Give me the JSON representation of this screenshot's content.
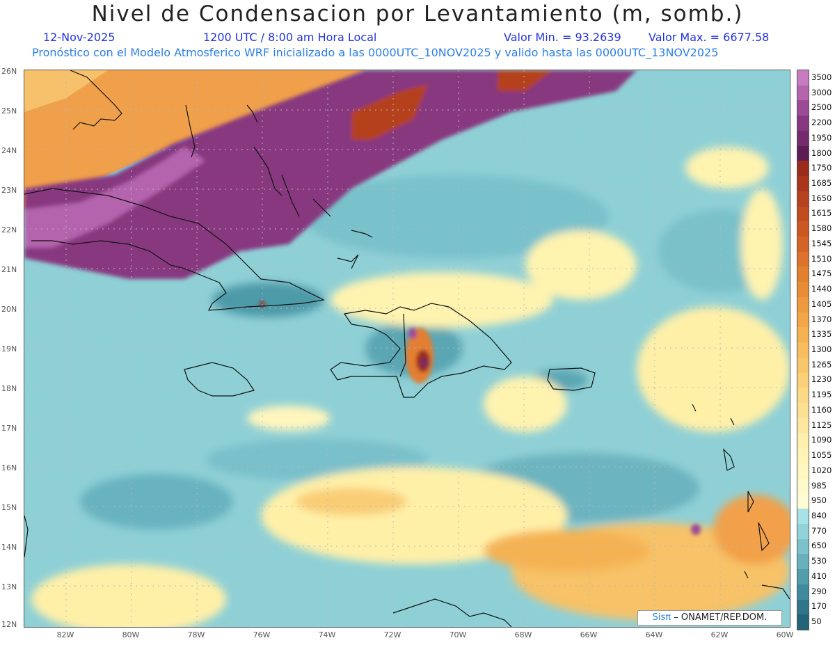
{
  "header": {
    "title": "Nivel de Condensacion por Levantamiento (m, somb.)",
    "date": "12-Nov-2025",
    "time": "1200 UTC / 8:00 am Hora Local",
    "min_label": "Valor Min. = 93.2639",
    "max_label": "Valor Max. = 6677.58",
    "model_info": "Pronóstico con el Modelo Atmosferico WRF inicializado a las 0000UTC_10NOV2025 y valido hasta las  0000UTC_13NOV2025"
  },
  "map": {
    "lat_labels": [
      "26N",
      "25N",
      "24N",
      "23N",
      "22N",
      "21N",
      "20N",
      "19N",
      "18N",
      "17N",
      "16N",
      "15N",
      "14N",
      "13N",
      "12N"
    ],
    "lon_labels": [
      "82W",
      "80W",
      "78W",
      "76W",
      "74W",
      "72W",
      "70W",
      "68W",
      "66W",
      "64W",
      "62W",
      "60W"
    ],
    "lat_range": [
      12,
      26
    ],
    "lon_range": [
      -83.2,
      -59.8
    ]
  },
  "legend": {
    "labels": [
      "3500",
      "3000",
      "2500",
      "2200",
      "1950",
      "1800",
      "1750",
      "1685",
      "1650",
      "1615",
      "1580",
      "1545",
      "1510",
      "1475",
      "1440",
      "1405",
      "1370",
      "1335",
      "1300",
      "1265",
      "1230",
      "1195",
      "1160",
      "1125",
      "1090",
      "1055",
      "1020",
      "985",
      "950",
      "840",
      "770",
      "650",
      "530",
      "410",
      "290",
      "170",
      "50"
    ],
    "colors": [
      "#c77bc0",
      "#b463ad",
      "#9c4a96",
      "#87377f",
      "#742a6c",
      "#5e1c55",
      "#9b2c1a",
      "#a9361c",
      "#b5411e",
      "#c04c20",
      "#cb5823",
      "#d46426",
      "#dc722b",
      "#e37f31",
      "#e98c37",
      "#ee993f",
      "#f2a648",
      "#f5b253",
      "#f7bd5f",
      "#f9c76b",
      "#fbd078",
      "#fcd985",
      "#fde193",
      "#fde8a0",
      "#fef0ad",
      "#fef4b8",
      "#fef7c2",
      "#fffacb",
      "#fffdd6",
      "#a8e2e6",
      "#92d3d9",
      "#7cc2cb",
      "#67b0bc",
      "#529dac",
      "#3f8a9c",
      "#2f768a",
      "#236478"
    ]
  },
  "credit": {
    "brand": "Sisπ",
    "text": "– ONAMET/REP.DOM."
  }
}
